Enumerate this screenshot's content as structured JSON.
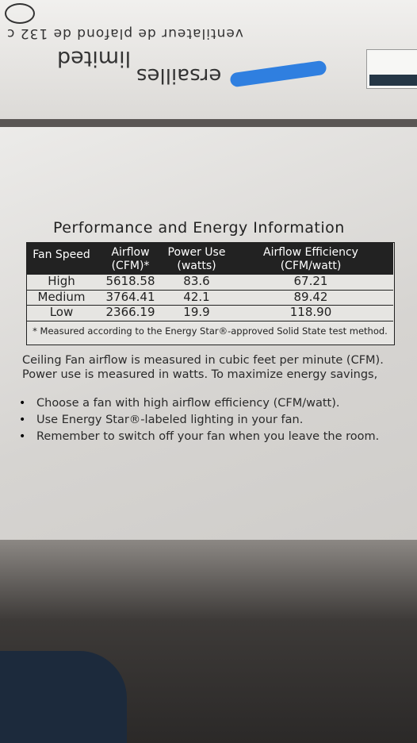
{
  "box_top": {
    "line1": "ventilateur de plafond de 132 c",
    "brand": "ersailles",
    "brand2": "limited"
  },
  "label": {
    "title": "Performance and Energy Information",
    "table": {
      "headers": [
        [
          "Fan Speed"
        ],
        [
          "Airflow",
          "(CFM)*"
        ],
        [
          "Power Use",
          "(watts)"
        ],
        [
          "Airflow Efficiency",
          "(CFM/watt)"
        ]
      ],
      "rows": [
        [
          "High",
          "5618.58",
          "83.6",
          "67.21"
        ],
        [
          "Medium",
          "3764.41",
          "42.1",
          "89.42"
        ],
        [
          "Low",
          "2366.19",
          "19.9",
          "118.90"
        ]
      ],
      "footnote": "* Measured according to the Energy Star®-approved Solid State test method."
    },
    "intro": [
      "Ceiling Fan airflow is measured in cubic feet per minute (CFM).",
      "Power use is measured in watts. To maximize energy savings,"
    ],
    "bullets": [
      "Choose a fan with high airflow efficiency (CFM/watt).",
      "Use Energy Star®-labeled lighting in your fan.",
      "Remember to switch off your fan when you leave the room."
    ]
  }
}
